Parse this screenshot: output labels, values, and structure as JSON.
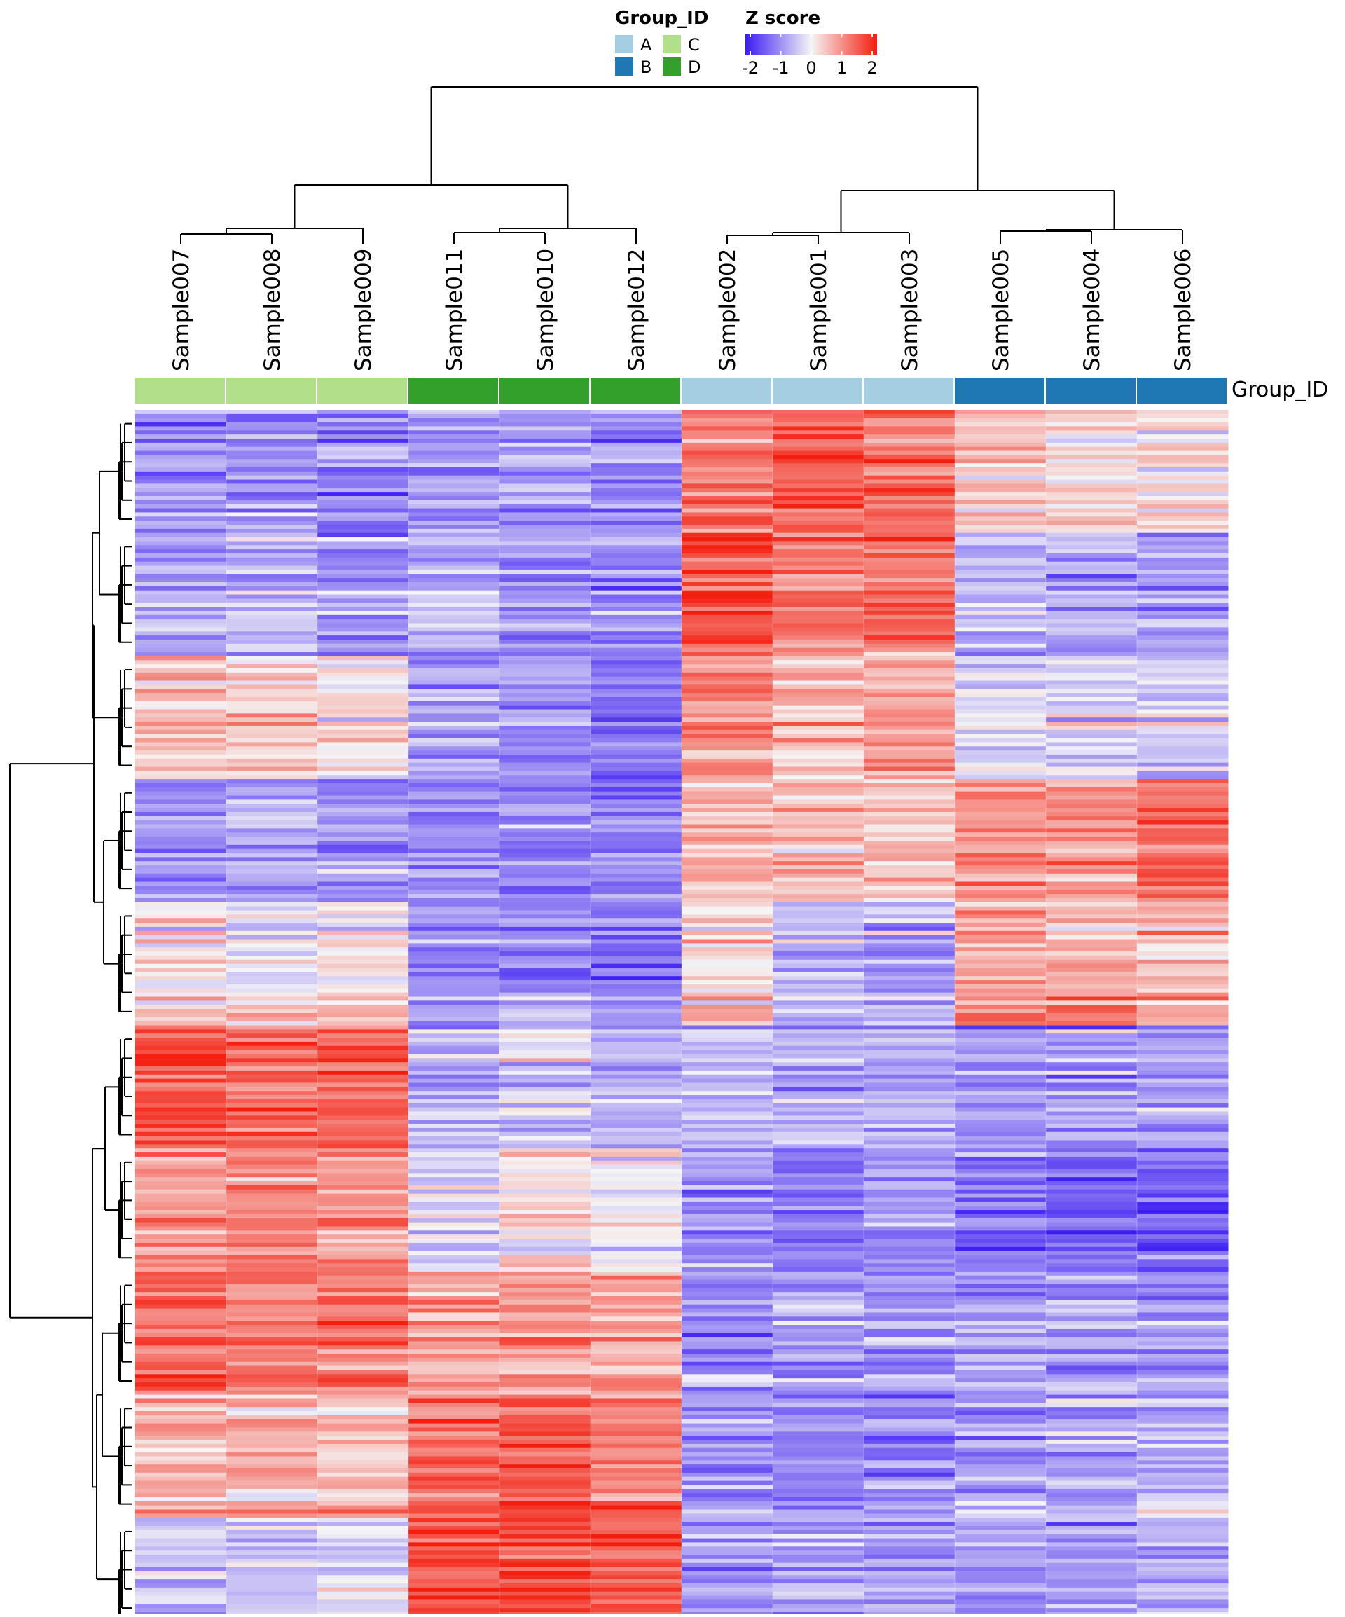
{
  "chart_data": {
    "type": "heatmap",
    "title": "",
    "samples": [
      "Sample007",
      "Sample008",
      "Sample009",
      "Sample011",
      "Sample010",
      "Sample012",
      "Sample002",
      "Sample001",
      "Sample003",
      "Sample005",
      "Sample004",
      "Sample006"
    ],
    "sample_groups": [
      "C",
      "C",
      "C",
      "D",
      "D",
      "D",
      "A",
      "A",
      "A",
      "B",
      "B",
      "B"
    ],
    "annotation_track_label": "Group_ID",
    "group_legend": {
      "title": "Group_ID",
      "items": [
        {
          "label": "A",
          "color": "#a6cee3"
        },
        {
          "label": "B",
          "color": "#1f78b4"
        },
        {
          "label": "C",
          "color": "#b2df8a"
        },
        {
          "label": "D",
          "color": "#33a02c"
        }
      ]
    },
    "color_scale": {
      "title": "Z score",
      "min": -2,
      "max": 2,
      "ticks": [
        "-2",
        "-1",
        "0",
        "1",
        "2"
      ],
      "low_color": "#3b1cf2",
      "mid_color": "#f5f5f5",
      "high_color": "#f41d0e"
    },
    "row_blocks": [
      {
        "id": "b1",
        "mean": [
          -0.8,
          -0.9,
          -1.0,
          -0.9,
          -0.8,
          -0.9,
          1.2,
          1.4,
          1.3,
          0.4,
          0.3,
          0.2
        ]
      },
      {
        "id": "b2",
        "mean": [
          -0.7,
          -0.6,
          -0.9,
          -0.7,
          -0.9,
          -1.0,
          1.5,
          1.1,
          1.2,
          -0.6,
          -0.7,
          -0.9
        ]
      },
      {
        "id": "b3",
        "mean": [
          0.6,
          0.4,
          0.2,
          -0.8,
          -0.9,
          -1.2,
          1.0,
          0.5,
          0.8,
          -0.3,
          -0.2,
          -0.4
        ]
      },
      {
        "id": "b4",
        "mean": [
          -0.8,
          -0.7,
          -0.9,
          -1.0,
          -1.0,
          -1.1,
          0.7,
          0.6,
          0.5,
          0.9,
          0.9,
          1.3
        ]
      },
      {
        "id": "b5",
        "mean": [
          0.1,
          0.0,
          0.2,
          -0.9,
          -0.9,
          -1.1,
          0.2,
          -0.5,
          -0.7,
          0.8,
          0.7,
          0.6
        ]
      },
      {
        "id": "b6",
        "mean": [
          1.6,
          1.4,
          1.5,
          -0.5,
          -0.2,
          -0.6,
          -0.6,
          -0.6,
          -0.6,
          -0.8,
          -0.8,
          -0.8
        ]
      },
      {
        "id": "b7",
        "mean": [
          1.0,
          1.1,
          1.0,
          -0.2,
          0.2,
          0.0,
          -1.0,
          -1.1,
          -0.8,
          -1.2,
          -1.3,
          -1.4
        ]
      },
      {
        "id": "b8",
        "mean": [
          1.2,
          1.1,
          1.1,
          0.8,
          0.8,
          0.7,
          -0.9,
          -0.8,
          -0.9,
          -0.8,
          -0.8,
          -0.9
        ]
      },
      {
        "id": "b9",
        "mean": [
          0.6,
          0.5,
          0.4,
          1.3,
          1.4,
          1.0,
          -1.0,
          -1.1,
          -1.0,
          -0.8,
          -0.8,
          -0.7
        ]
      },
      {
        "id": "b10",
        "mean": [
          -0.4,
          -0.3,
          -0.2,
          1.6,
          1.7,
          1.5,
          -0.8,
          -0.7,
          -0.7,
          -0.8,
          -0.7,
          -0.6
        ]
      }
    ]
  }
}
